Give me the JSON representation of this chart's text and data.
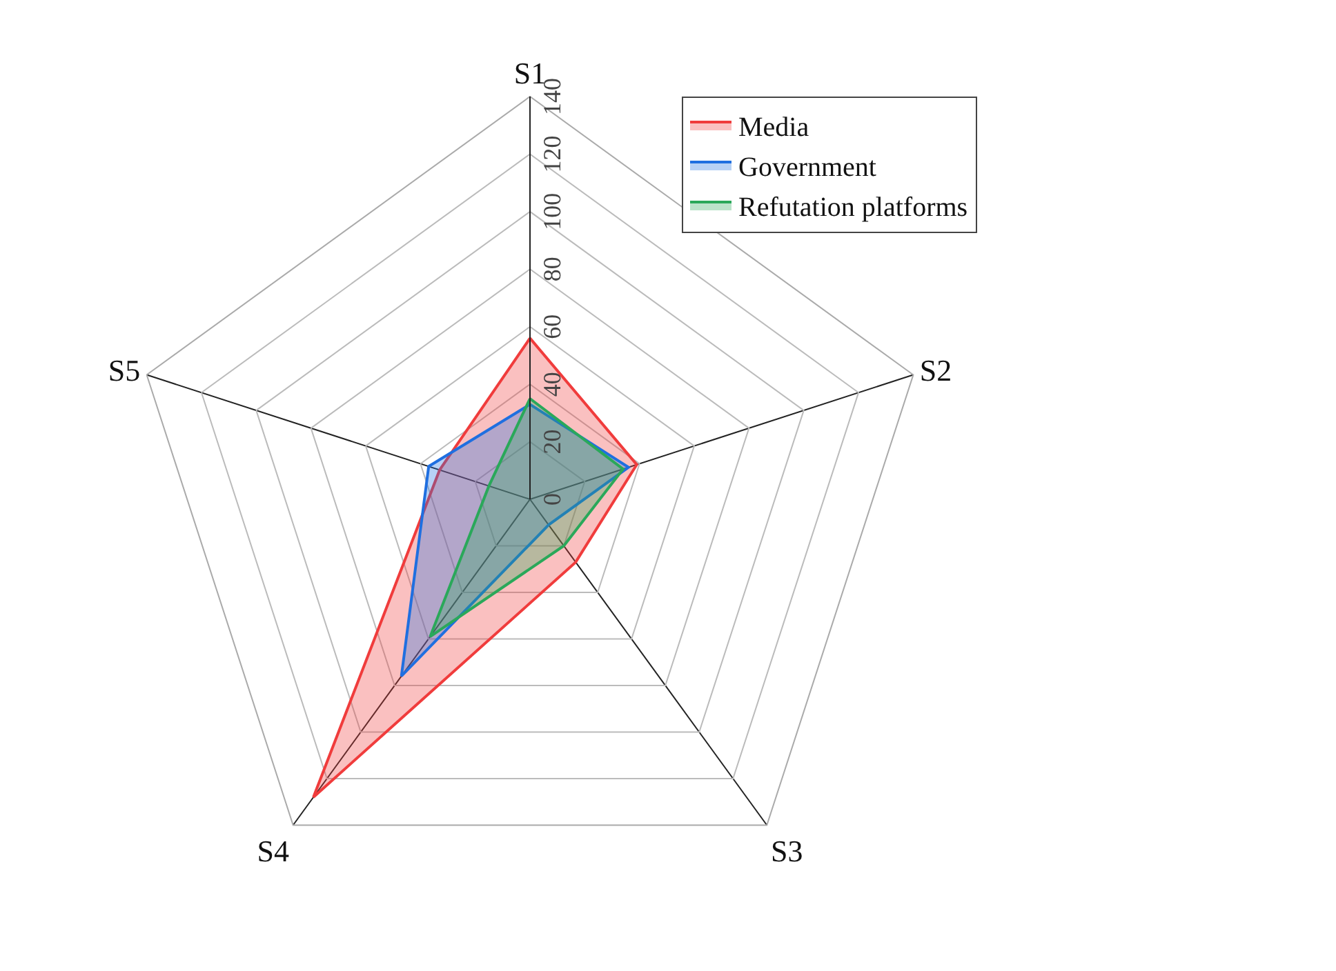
{
  "chart_data": {
    "type": "radar",
    "categories": [
      "S1",
      "S2",
      "S3",
      "S4",
      "S5"
    ],
    "series": [
      {
        "name": "Media",
        "color": "#f03c3c",
        "values": [
          56,
          39,
          27,
          128,
          33
        ]
      },
      {
        "name": "Government",
        "color": "#1f6fe0",
        "values": [
          33,
          36,
          11,
          76,
          37
        ]
      },
      {
        "name": "Refutation platforms",
        "color": "#2aa85a",
        "values": [
          35,
          34,
          20,
          59,
          15
        ]
      }
    ],
    "ylim": [
      0,
      140
    ],
    "yticks": [
      0,
      20,
      40,
      60,
      80,
      100,
      120,
      140
    ],
    "grid": true,
    "legend": "top right",
    "marker": "none"
  }
}
